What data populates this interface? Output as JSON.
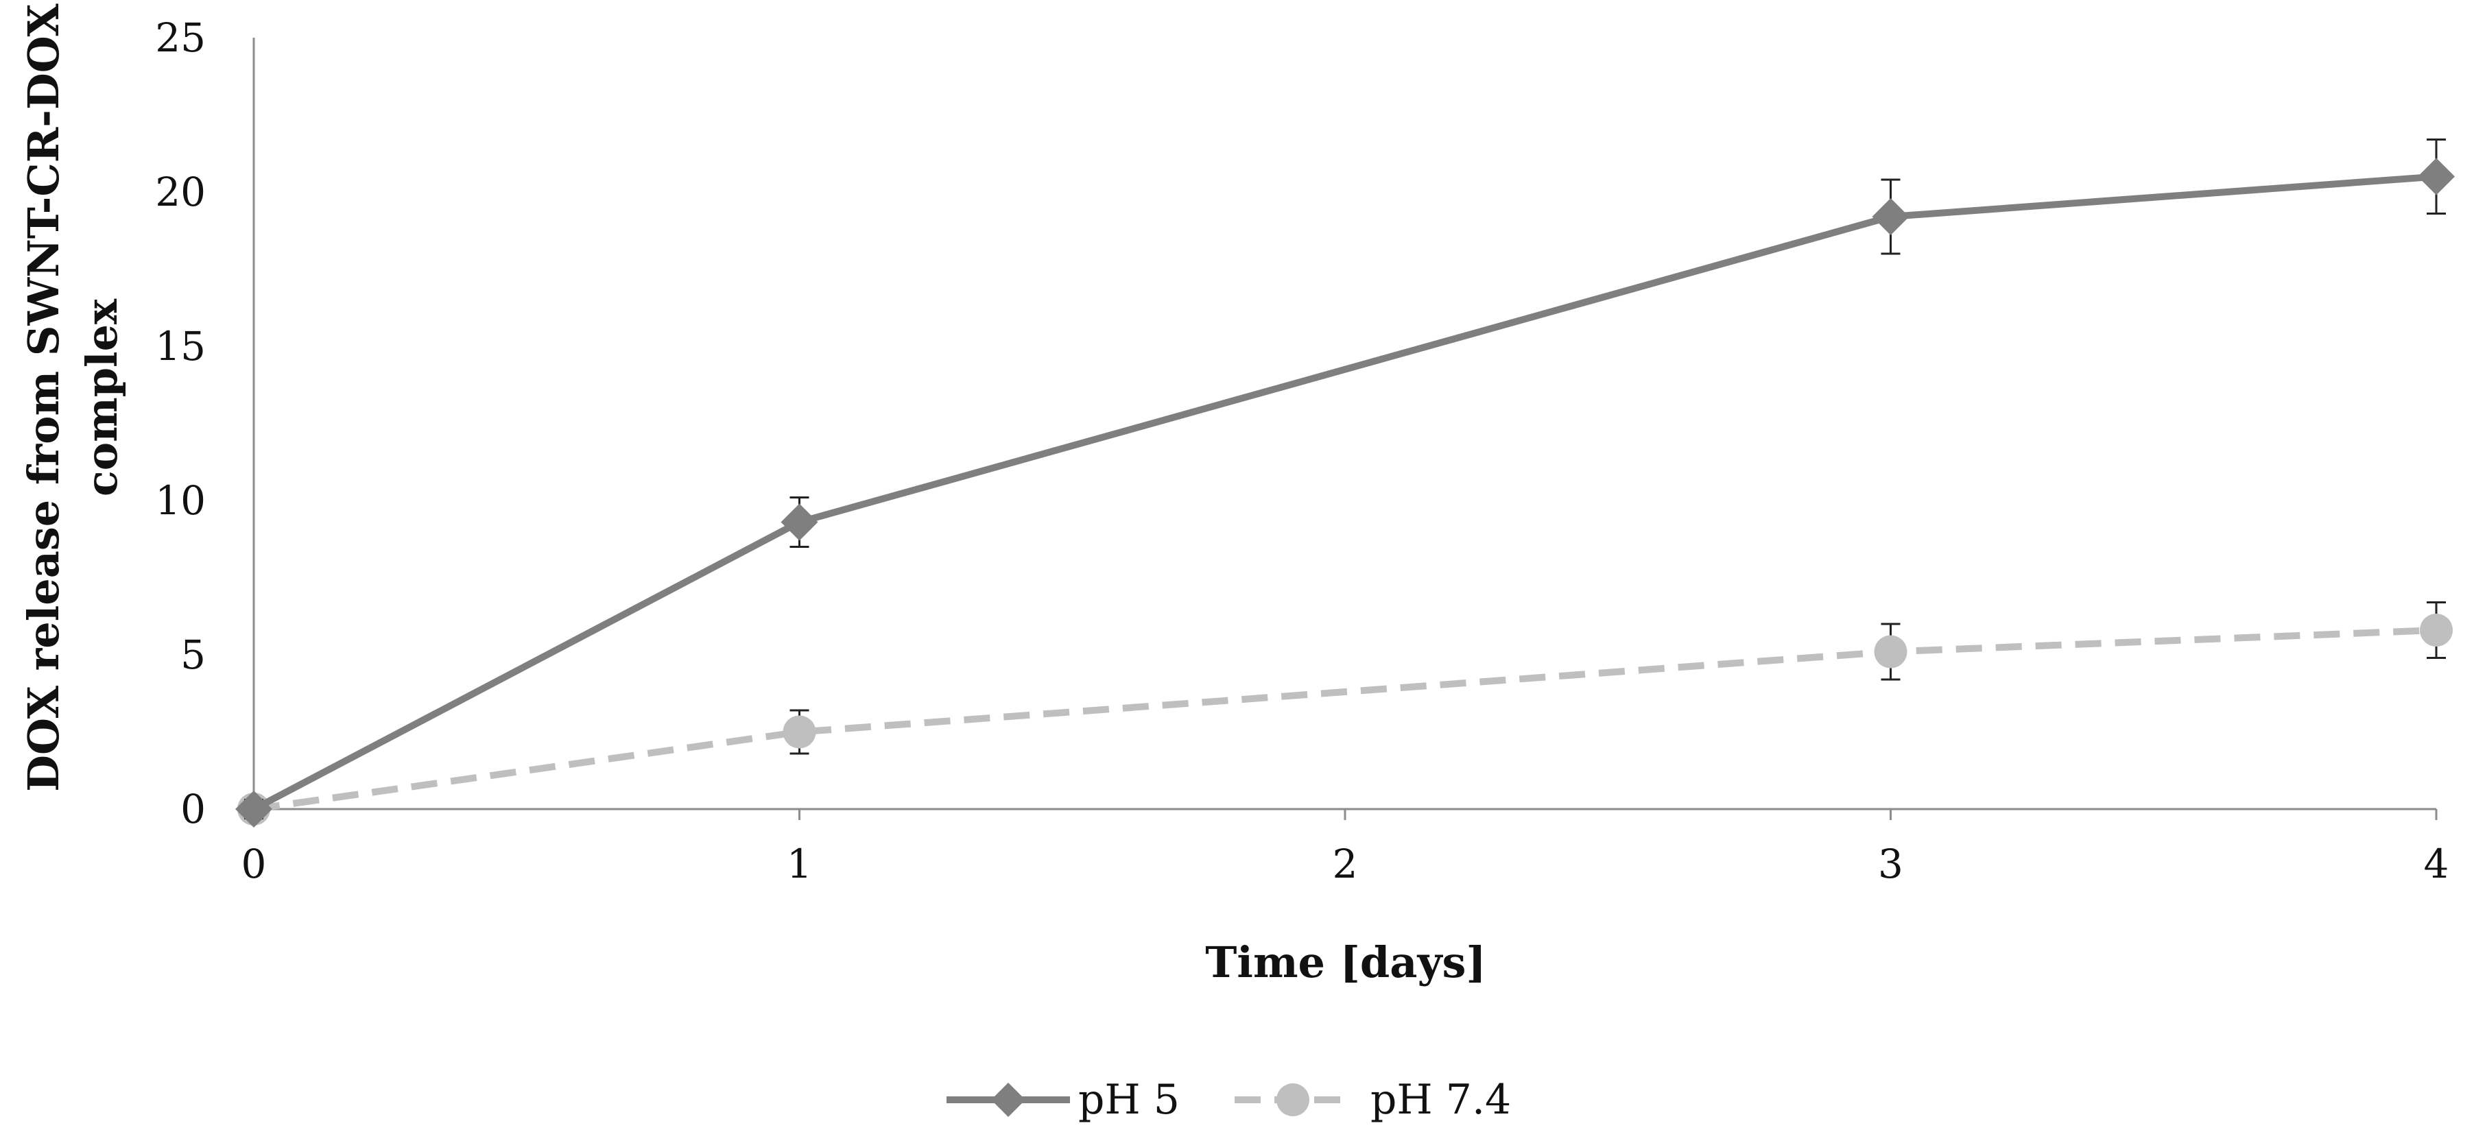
{
  "chart_data": {
    "type": "line",
    "title": "",
    "xlabel": "Time [days]",
    "ylabel_lines": [
      "DOX release from SWNT-CR-DOX",
      "complex"
    ],
    "x": [
      0,
      1,
      3,
      4
    ],
    "x_ticks": [
      0,
      1,
      2,
      3,
      4
    ],
    "xlim": [
      0,
      4
    ],
    "y_ticks": [
      0,
      5,
      10,
      15,
      20,
      25
    ],
    "ylim": [
      0,
      25
    ],
    "grid": false,
    "legend_position": "bottom-center",
    "series": [
      {
        "name": "pH 5",
        "values": [
          0,
          9.3,
          19.2,
          20.5
        ],
        "errors": [
          0.3,
          0.8,
          1.2,
          1.2
        ],
        "color": "#7f7f7f",
        "marker": "diamond",
        "line_style": "solid"
      },
      {
        "name": "pH 7.4",
        "values": [
          0,
          2.5,
          5.1,
          5.8
        ],
        "errors": [
          0,
          0.7,
          0.9,
          0.9
        ],
        "color": "#bfbfbf",
        "marker": "circle",
        "line_style": "dashed"
      }
    ]
  }
}
